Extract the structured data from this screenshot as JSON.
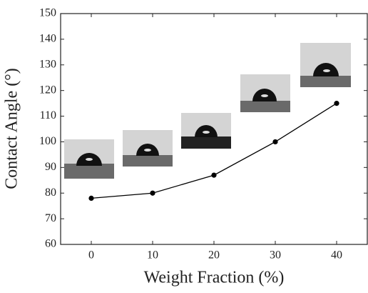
{
  "chart_data": {
    "type": "line",
    "x": [
      0,
      10,
      20,
      30,
      40
    ],
    "series": [
      {
        "color": "#000000",
        "values": [
          78,
          80,
          87,
          100,
          115
        ]
      }
    ],
    "xlabel": "Weight Fraction (%)",
    "ylabel": "Contact Angle (°)",
    "xlim": [
      -5,
      45
    ],
    "xticks": [
      0,
      10,
      20,
      30,
      40
    ],
    "ylim": [
      60,
      150
    ],
    "yticks": [
      60,
      70,
      80,
      90,
      100,
      110,
      120,
      130,
      140,
      150
    ]
  }
}
